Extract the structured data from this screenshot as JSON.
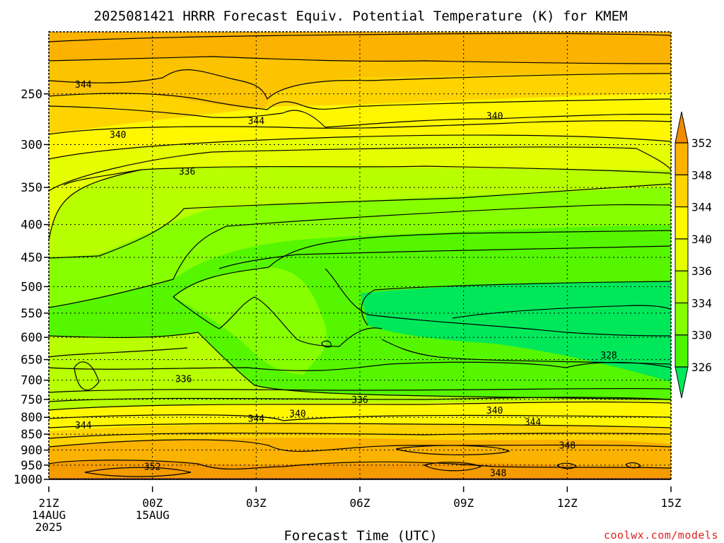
{
  "chart_data": {
    "type": "heatmap",
    "title": "2025081421 HRRR Forecast Equiv. Potential Temperature (K) for KMEM",
    "xlabel": "Forecast Time (UTC)",
    "ylabel": "",
    "x_ticks": [
      {
        "label": [
          "21Z",
          "14AUG",
          "2025"
        ],
        "hours": 0
      },
      {
        "label": [
          "00Z",
          "15AUG"
        ],
        "hours": 3
      },
      {
        "label": [
          "03Z"
        ],
        "hours": 6
      },
      {
        "label": [
          "06Z"
        ],
        "hours": 9
      },
      {
        "label": [
          "09Z"
        ],
        "hours": 12
      },
      {
        "label": [
          "12Z"
        ],
        "hours": 15
      },
      {
        "label": [
          "15Z"
        ],
        "hours": 18
      }
    ],
    "xlim": [
      0,
      18
    ],
    "y_axis": "pressure",
    "y_ticks": [
      250,
      300,
      350,
      400,
      450,
      500,
      550,
      600,
      650,
      700,
      750,
      800,
      850,
      900,
      950,
      1000
    ],
    "ylim": [
      200,
      1000
    ],
    "grid": true,
    "colorbar": {
      "ticks": [
        352,
        348,
        344,
        340,
        336,
        334,
        330,
        326
      ],
      "colors": [
        "#f08c00",
        "#fbb200",
        "#fdd400",
        "#fff700",
        "#e6ff00",
        "#b8ff00",
        "#86ff00",
        "#4cf400",
        "#00e85a"
      ]
    },
    "contour_labels": [
      {
        "text": "344",
        "x_hours": 1.0,
        "p": 242
      },
      {
        "text": "344",
        "x_hours": 6.0,
        "p": 276
      },
      {
        "text": "340",
        "x_hours": 12.9,
        "p": 271
      },
      {
        "text": "340",
        "x_hours": 2.0,
        "p": 290
      },
      {
        "text": "336",
        "x_hours": 4.0,
        "p": 331
      },
      {
        "text": "328",
        "x_hours": 16.2,
        "p": 641
      },
      {
        "text": "336",
        "x_hours": 3.9,
        "p": 698
      },
      {
        "text": "336",
        "x_hours": 9.0,
        "p": 752
      },
      {
        "text": "340",
        "x_hours": 7.2,
        "p": 790
      },
      {
        "text": "340",
        "x_hours": 12.9,
        "p": 781
      },
      {
        "text": "344",
        "x_hours": 6.0,
        "p": 805
      },
      {
        "text": "344",
        "x_hours": 1.0,
        "p": 824
      },
      {
        "text": "344",
        "x_hours": 14.0,
        "p": 815
      },
      {
        "text": "348",
        "x_hours": 15.0,
        "p": 886
      },
      {
        "text": "352",
        "x_hours": 3.0,
        "p": 957
      },
      {
        "text": "348",
        "x_hours": 13.0,
        "p": 978
      }
    ]
  },
  "credit": "coolwx.com/models"
}
